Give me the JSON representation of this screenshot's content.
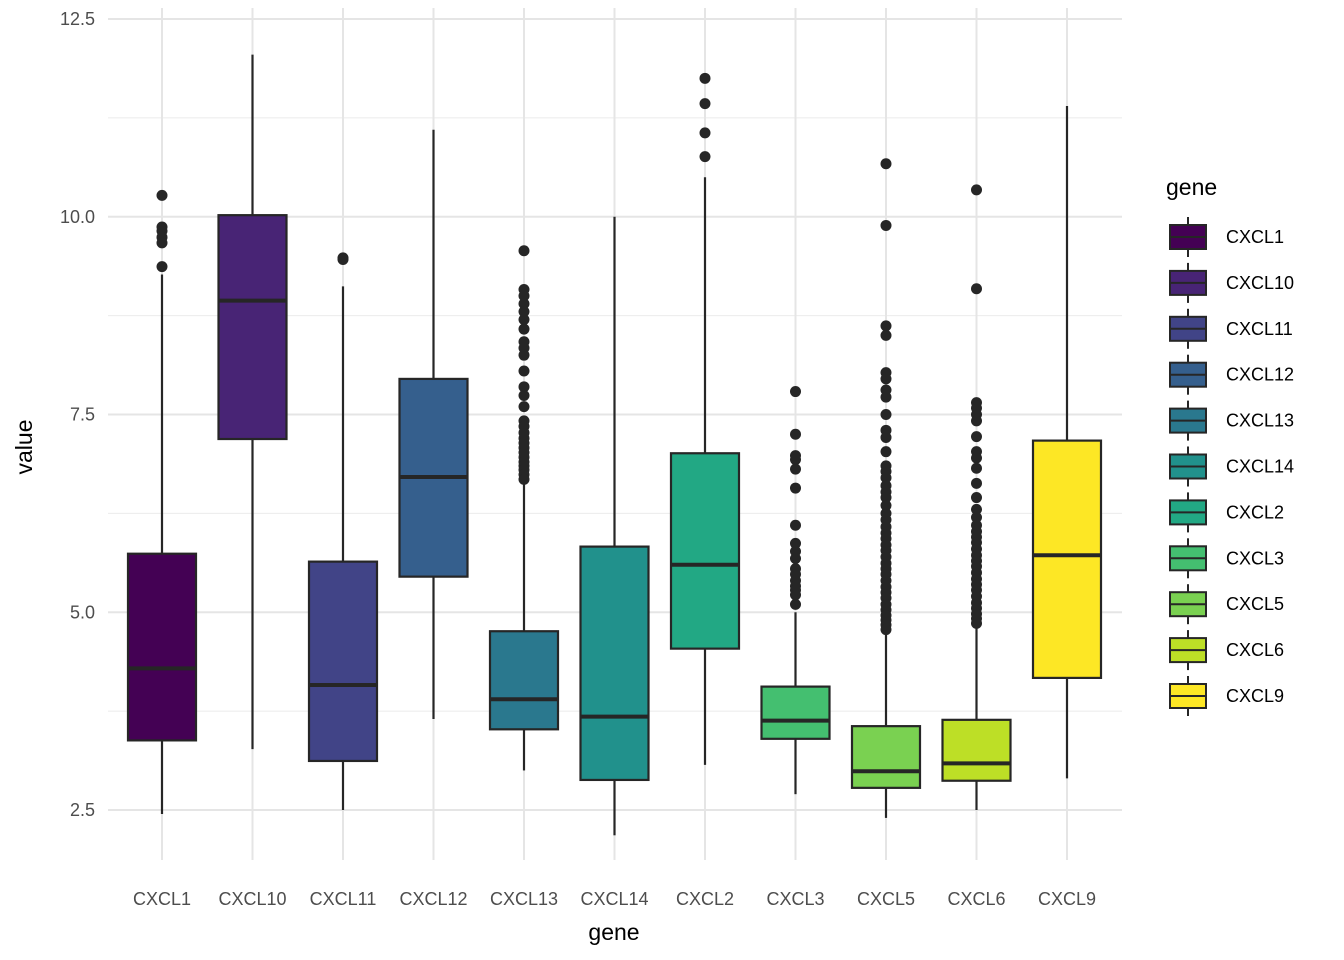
{
  "chart_data": {
    "type": "box",
    "xlabel": "gene",
    "ylabel": "value",
    "ylim": [
      1.9,
      12.5
    ],
    "yticks": [
      "2.5",
      "5.0",
      "7.5",
      "10.0",
      "12.5"
    ],
    "ytick_values": [
      2.5,
      5.0,
      7.5,
      10.0,
      12.5
    ],
    "grid": true,
    "legend": {
      "title": "gene",
      "position": "right"
    },
    "categories": [
      "CXCL1",
      "CXCL10",
      "CXCL11",
      "CXCL12",
      "CXCL13",
      "CXCL14",
      "CXCL2",
      "CXCL3",
      "CXCL5",
      "CXCL6",
      "CXCL9"
    ],
    "series": [
      {
        "name": "CXCL1",
        "color": "#440154",
        "whisker_low": 2.45,
        "q1": 3.38,
        "median": 4.29,
        "q3": 5.74,
        "whisker_high": 9.27,
        "outliers": [
          10.27,
          9.87,
          9.82,
          9.74,
          9.67,
          9.37
        ]
      },
      {
        "name": "CXCL10",
        "color": "#482475",
        "whisker_low": 3.27,
        "q1": 7.19,
        "median": 8.94,
        "q3": 10.02,
        "whisker_high": 12.05,
        "outliers": []
      },
      {
        "name": "CXCL11",
        "color": "#414487",
        "whisker_low": 2.5,
        "q1": 3.12,
        "median": 4.08,
        "q3": 5.64,
        "whisker_high": 9.12,
        "outliers": [
          9.48,
          9.46
        ]
      },
      {
        "name": "CXCL12",
        "color": "#355f8d",
        "whisker_low": 3.65,
        "q1": 5.45,
        "median": 6.71,
        "q3": 7.95,
        "whisker_high": 11.1,
        "outliers": []
      },
      {
        "name": "CXCL13",
        "color": "#2a788e",
        "whisker_low": 3.0,
        "q1": 3.52,
        "median": 3.9,
        "q3": 4.76,
        "whisker_high": 6.62,
        "outliers": [
          9.57,
          9.08,
          9.0,
          8.9,
          8.8,
          8.7,
          8.58,
          8.42,
          8.34,
          8.25,
          8.05,
          7.85,
          7.74,
          7.6,
          7.42,
          7.35,
          7.27,
          7.2,
          7.14,
          7.08,
          7.02,
          6.96,
          6.9,
          6.85,
          6.8,
          6.74,
          6.68
        ]
      },
      {
        "name": "CXCL14",
        "color": "#21918c",
        "whisker_low": 2.18,
        "q1": 2.88,
        "median": 3.68,
        "q3": 5.83,
        "whisker_high": 10.0,
        "outliers": []
      },
      {
        "name": "CXCL2",
        "color": "#22a884",
        "whisker_low": 3.07,
        "q1": 4.54,
        "median": 5.6,
        "q3": 7.01,
        "whisker_high": 10.5,
        "outliers": [
          11.75,
          11.43,
          11.06,
          10.76
        ]
      },
      {
        "name": "CXCL3",
        "color": "#44bf70",
        "whisker_low": 2.7,
        "q1": 3.4,
        "median": 3.63,
        "q3": 4.06,
        "whisker_high": 5.0,
        "outliers": [
          7.79,
          7.25,
          6.98,
          6.93,
          6.81,
          6.57,
          6.1,
          5.87,
          5.77,
          5.68,
          5.55,
          5.48,
          5.4,
          5.33,
          5.28,
          5.22,
          5.1
        ]
      },
      {
        "name": "CXCL5",
        "color": "#7ad151",
        "whisker_low": 2.4,
        "q1": 2.78,
        "median": 2.99,
        "q3": 3.56,
        "whisker_high": 4.72,
        "outliers": [
          10.67,
          9.89,
          8.62,
          8.5,
          8.03,
          7.95,
          7.81,
          7.72,
          7.5,
          7.3,
          7.21,
          7.03,
          6.85,
          6.78,
          6.7,
          6.6,
          6.52,
          6.45,
          6.35,
          6.25,
          6.17,
          6.08,
          6.0,
          5.93,
          5.85,
          5.78,
          5.7,
          5.62,
          5.55,
          5.48,
          5.4,
          5.32,
          5.25,
          5.18,
          5.1,
          5.03,
          4.96,
          4.9,
          4.84,
          4.78
        ]
      },
      {
        "name": "CXCL6",
        "color": "#bddf26",
        "whisker_low": 2.5,
        "q1": 2.87,
        "median": 3.09,
        "q3": 3.64,
        "whisker_high": 4.82,
        "outliers": [
          10.34,
          9.09,
          7.65,
          7.58,
          7.5,
          7.42,
          7.22,
          7.03,
          6.95,
          6.82,
          6.63,
          6.45,
          6.3,
          6.2,
          6.1,
          6.02,
          5.95,
          5.88,
          5.8,
          5.72,
          5.65,
          5.58,
          5.5,
          5.42,
          5.35,
          5.28,
          5.2,
          5.12,
          5.05,
          4.98,
          4.92,
          4.86
        ]
      },
      {
        "name": "CXCL9",
        "color": "#fde725",
        "whisker_low": 2.9,
        "q1": 4.17,
        "median": 5.72,
        "q3": 7.17,
        "whisker_high": 11.4,
        "outliers": []
      }
    ]
  }
}
